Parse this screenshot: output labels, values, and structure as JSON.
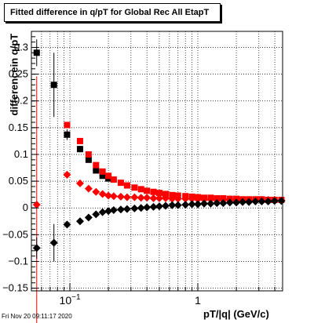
{
  "title": "Fitted difference in q/pT for Global Rec All EtapT",
  "xlabel": "pT/|q| (GeV/c)",
  "ylabel": "differencein q/pT",
  "datestamp": "Fri Nov 20 09:11:17 2020",
  "chart_data": {
    "type": "scatter",
    "title": "Fitted difference in q/pT for Global Rec All EtapT",
    "xlabel": "pT/|q| (GeV/c)",
    "ylabel": "differencein q/pT",
    "xscale": "log",
    "xlim": [
      0.05,
      4.6
    ],
    "ylim": [
      -0.155,
      0.33
    ],
    "grid": true,
    "yticks": [
      -0.15,
      -0.1,
      -0.05,
      0,
      0.05,
      0.1,
      0.15,
      0.2,
      0.25,
      0.3
    ],
    "ytick_labels": [
      "−0.15",
      "−0.1",
      "−0.05",
      "0",
      "0.05",
      "0.1",
      "0.15",
      "0.2",
      "0.25",
      "0.3"
    ],
    "xtick_labels": [
      {
        "value": 0.1,
        "label": "10⁻¹"
      },
      {
        "value": 1,
        "label": "1"
      }
    ],
    "series": [
      {
        "marker": "square",
        "color": "#000000",
        "x": [
          0.055,
          0.075,
          0.095,
          0.12,
          0.14,
          0.16,
          0.18,
          0.2
        ],
        "y": [
          0.29,
          0.23,
          0.137,
          0.11,
          0.09,
          0.07,
          0.06,
          0.055
        ],
        "yerr": [
          0.025,
          0.06,
          0.01,
          0.006,
          0.004,
          0.003,
          0.003,
          0.003
        ]
      },
      {
        "marker": "square",
        "color": "#ff0000",
        "x": [
          0.095,
          0.12,
          0.14,
          0.16,
          0.18,
          0.2,
          0.22,
          0.25,
          0.28,
          0.32,
          0.36,
          0.4,
          0.45,
          0.5,
          0.56,
          0.63,
          0.7,
          0.8,
          0.9,
          1.0,
          1.12,
          1.26,
          1.41,
          1.58,
          1.78,
          2.0,
          2.24,
          2.51,
          2.82,
          3.16,
          3.55,
          3.98,
          4.5
        ],
        "y": [
          0.155,
          0.125,
          0.1,
          0.08,
          0.068,
          0.06,
          0.053,
          0.047,
          0.042,
          0.038,
          0.035,
          0.032,
          0.03,
          0.028,
          0.026,
          0.024,
          0.023,
          0.022,
          0.021,
          0.02,
          0.019,
          0.019,
          0.018,
          0.018,
          0.017,
          0.017,
          0.016,
          0.016,
          0.016,
          0.016,
          0.015,
          0.015,
          0.015
        ],
        "yerr": [
          0.003,
          0.002,
          0.002,
          0.002,
          0.002,
          0.002,
          0.002,
          0.002,
          0.002,
          0.002,
          0.002,
          0.002,
          0.002,
          0.002,
          0.002,
          0.002,
          0.002,
          0.002,
          0.002,
          0.002,
          0.002,
          0.002,
          0.002,
          0.002,
          0.002,
          0.002,
          0.002,
          0.002,
          0.002,
          0.002,
          0.002,
          0.002,
          0.002
        ]
      },
      {
        "marker": "diamond",
        "color": "#ff0000",
        "x": [
          0.055,
          0.095,
          0.12,
          0.14,
          0.16,
          0.18,
          0.2,
          0.22,
          0.25,
          0.28,
          0.32,
          0.36,
          0.4,
          0.45,
          0.5,
          0.56,
          0.63,
          0.7,
          0.8,
          0.9,
          1.0,
          1.12,
          1.26,
          1.41,
          1.58,
          1.78,
          2.0,
          2.24,
          2.51,
          2.82,
          3.16,
          3.55,
          3.98,
          4.5
        ],
        "y": [
          0.006,
          0.062,
          0.046,
          0.036,
          0.03,
          0.026,
          0.023,
          0.022,
          0.021,
          0.02,
          0.02,
          0.019,
          0.019,
          0.018,
          0.018,
          0.018,
          0.017,
          0.017,
          0.017,
          0.017,
          0.016,
          0.016,
          0.016,
          0.016,
          0.016,
          0.015,
          0.015,
          0.015,
          0.015,
          0.015,
          0.015,
          0.015,
          0.015,
          0.014
        ],
        "yerr": [
          0.24,
          0.004,
          0.002,
          0.002,
          0.002,
          0.002,
          0.002,
          0.002,
          0.002,
          0.002,
          0.002,
          0.002,
          0.002,
          0.002,
          0.002,
          0.002,
          0.002,
          0.002,
          0.002,
          0.002,
          0.002,
          0.002,
          0.002,
          0.002,
          0.002,
          0.002,
          0.002,
          0.002,
          0.002,
          0.002,
          0.002,
          0.002,
          0.002,
          0.002
        ]
      },
      {
        "marker": "diamond",
        "color": "#000000",
        "x": [
          0.055,
          0.075,
          0.095,
          0.12,
          0.14,
          0.16,
          0.18,
          0.2,
          0.22,
          0.25,
          0.28,
          0.32,
          0.36,
          0.4,
          0.45,
          0.5,
          0.56,
          0.63,
          0.7,
          0.8,
          0.9,
          1.0,
          1.12,
          1.26,
          1.41,
          1.58,
          1.78,
          2.0,
          2.24,
          2.51,
          2.82,
          3.16,
          3.55,
          3.98,
          4.5
        ],
        "y": [
          -0.075,
          -0.065,
          -0.031,
          -0.025,
          -0.018,
          -0.012,
          -0.008,
          -0.006,
          -0.004,
          -0.003,
          -0.002,
          -0.001,
          0.0,
          0.001,
          0.002,
          0.003,
          0.004,
          0.005,
          0.005,
          0.006,
          0.007,
          0.007,
          0.008,
          0.008,
          0.009,
          0.009,
          0.01,
          0.01,
          0.011,
          0.011,
          0.012,
          0.012,
          0.012,
          0.013,
          0.013
        ],
        "yerr": [
          0.02,
          0.035,
          0.003,
          0.002,
          0.002,
          0.002,
          0.002,
          0.002,
          0.002,
          0.002,
          0.002,
          0.002,
          0.002,
          0.002,
          0.002,
          0.002,
          0.002,
          0.002,
          0.002,
          0.002,
          0.002,
          0.002,
          0.002,
          0.002,
          0.002,
          0.002,
          0.002,
          0.002,
          0.002,
          0.002,
          0.002,
          0.002,
          0.002,
          0.002,
          0.002
        ]
      }
    ]
  }
}
